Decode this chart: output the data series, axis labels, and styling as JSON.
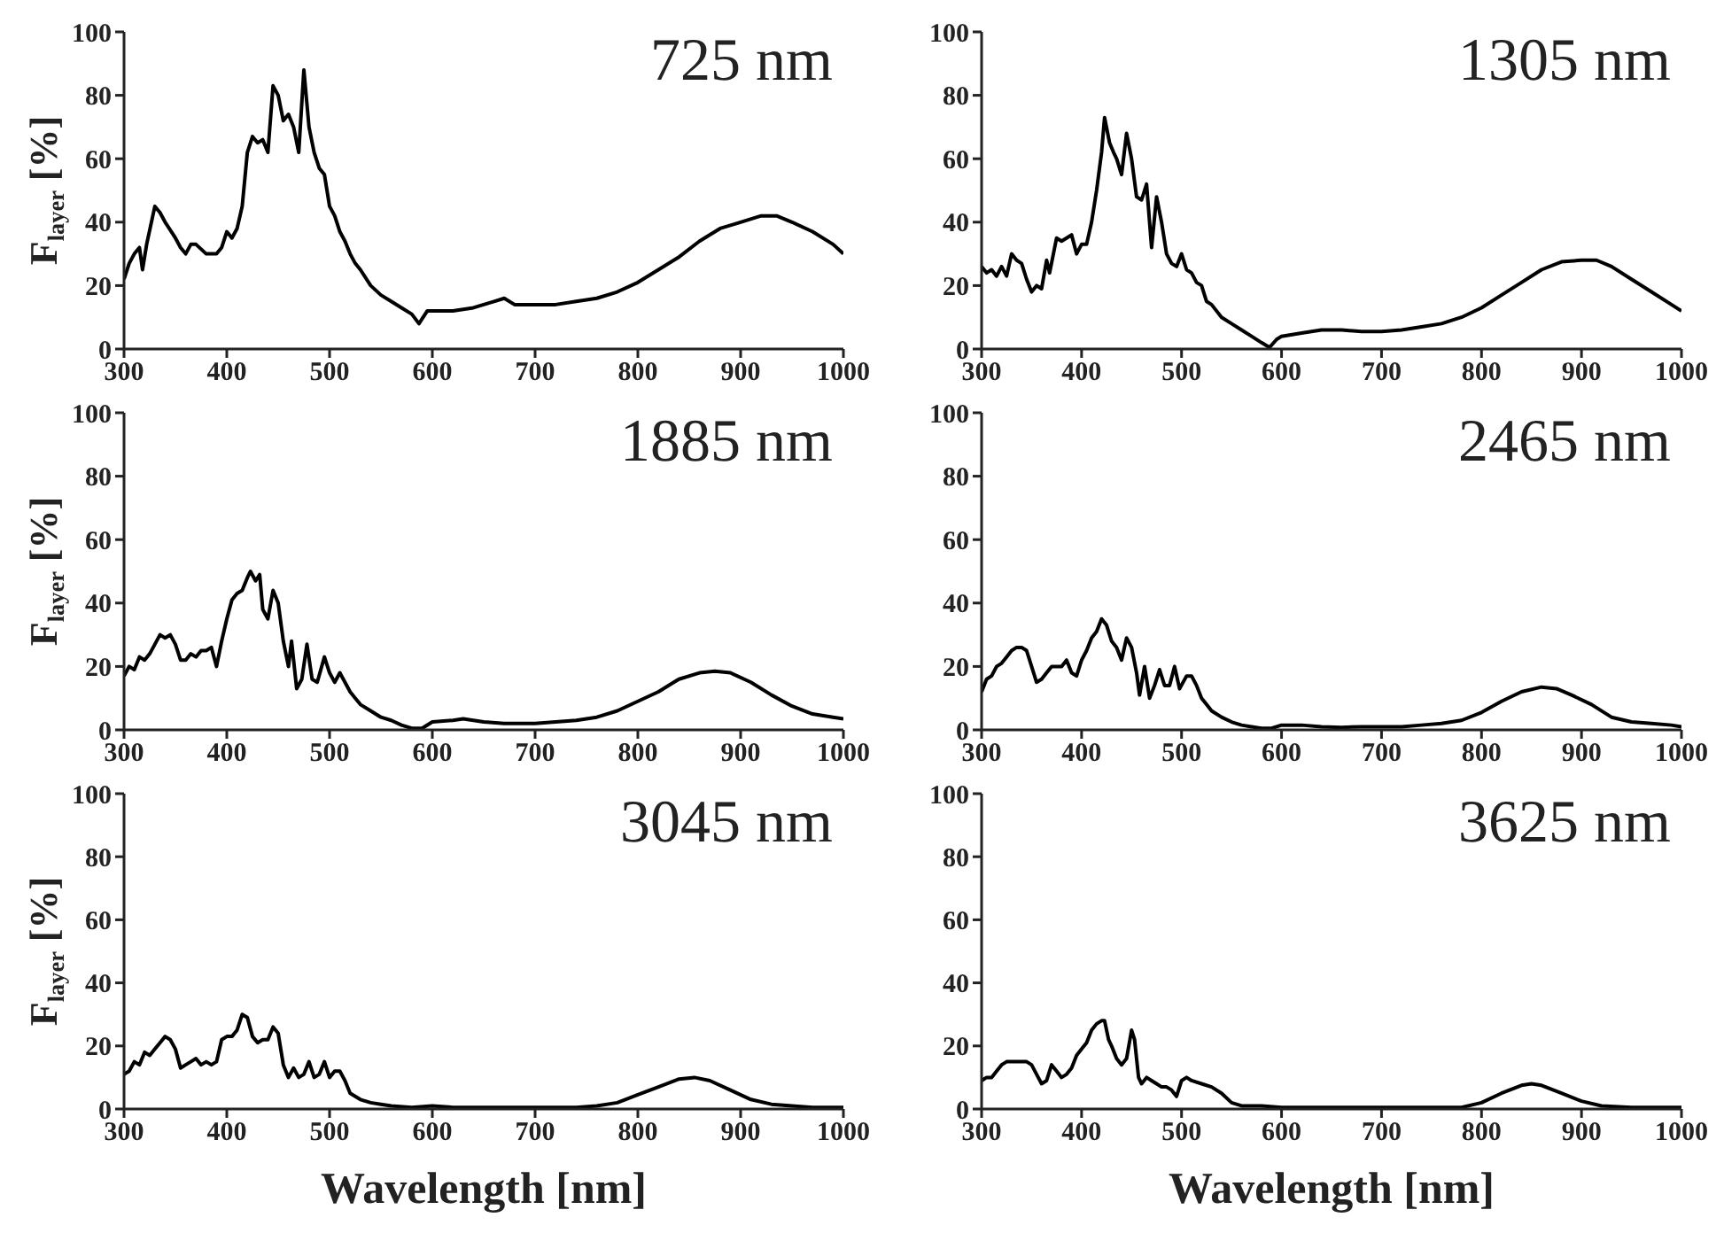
{
  "chart_data": [
    {
      "type": "line",
      "title": "725 nm",
      "ylabel": "F$_{layer}$ [%]",
      "xlim": [
        300,
        1000
      ],
      "xticks": [
        300,
        400,
        500,
        600,
        700,
        800,
        900,
        1000
      ],
      "ylim": [
        0,
        100
      ],
      "yticks": [
        0,
        20,
        40,
        60,
        80,
        100
      ],
      "tick_labels": true,
      "x": [
        300,
        305,
        310,
        315,
        318,
        322,
        330,
        335,
        340,
        350,
        355,
        360,
        365,
        370,
        380,
        390,
        395,
        400,
        405,
        410,
        415,
        420,
        425,
        430,
        435,
        440,
        445,
        450,
        455,
        460,
        465,
        470,
        475,
        480,
        485,
        490,
        495,
        500,
        505,
        510,
        515,
        520,
        525,
        530,
        540,
        550,
        560,
        570,
        580,
        587,
        595,
        600,
        620,
        640,
        660,
        670,
        680,
        700,
        720,
        740,
        760,
        780,
        800,
        820,
        840,
        860,
        880,
        900,
        920,
        935,
        950,
        970,
        990,
        1000
      ],
      "series": [
        {
          "color": "#000000",
          "values": [
            22,
            27,
            30,
            32,
            25,
            33,
            45,
            43,
            40,
            35,
            32,
            30,
            33,
            33,
            30,
            30,
            32,
            37,
            35,
            38,
            45,
            62,
            67,
            65,
            66,
            62,
            83,
            80,
            72,
            74,
            70,
            62,
            88,
            70,
            62,
            57,
            55,
            45,
            42,
            37,
            34,
            30,
            27,
            25,
            20,
            17,
            15,
            13,
            11,
            8,
            12,
            12,
            12,
            13,
            15,
            16,
            14,
            14,
            14,
            15,
            16,
            18,
            21,
            25,
            29,
            34,
            38,
            40,
            42,
            42,
            40,
            37,
            33,
            30
          ]
        }
      ]
    },
    {
      "type": "line",
      "title": "1305 nm",
      "xlim": [
        300,
        1000
      ],
      "xticks": [
        300,
        400,
        500,
        600,
        700,
        800,
        900,
        1000
      ],
      "ylim": [
        0,
        100
      ],
      "yticks": [
        0,
        20,
        40,
        60,
        80,
        100
      ],
      "x": [
        300,
        305,
        310,
        315,
        320,
        325,
        330,
        335,
        340,
        345,
        350,
        355,
        360,
        365,
        368,
        375,
        380,
        385,
        390,
        395,
        400,
        405,
        410,
        415,
        420,
        423,
        428,
        432,
        435,
        440,
        445,
        450,
        455,
        460,
        465,
        470,
        475,
        480,
        485,
        490,
        495,
        500,
        505,
        510,
        515,
        520,
        525,
        530,
        540,
        550,
        560,
        570,
        580,
        588,
        595,
        600,
        620,
        640,
        660,
        680,
        700,
        720,
        740,
        760,
        780,
        800,
        820,
        840,
        860,
        880,
        900,
        915,
        930,
        950,
        970,
        990,
        1000
      ],
      "series": [
        {
          "color": "#000000",
          "values": [
            26,
            24,
            25,
            23,
            26,
            23,
            30,
            28,
            27,
            22,
            18,
            20,
            19,
            28,
            24,
            35,
            34,
            35,
            36,
            30,
            33,
            33,
            40,
            50,
            62,
            73,
            65,
            62,
            60,
            55,
            68,
            60,
            48,
            47,
            52,
            32,
            48,
            40,
            30,
            27,
            26,
            30,
            25,
            24,
            21,
            20,
            15,
            14,
            10,
            8,
            6,
            4,
            2,
            0.5,
            3,
            4,
            5,
            6,
            6,
            5.5,
            5.5,
            6,
            7,
            8,
            10,
            13,
            17,
            21,
            25,
            27.5,
            28,
            28,
            26,
            22,
            18,
            14,
            12
          ]
        }
      ]
    },
    {
      "type": "line",
      "title": "1885 nm",
      "ylabel": "F$_{layer}$ [%]",
      "xlim": [
        300,
        1000
      ],
      "xticks": [
        300,
        400,
        500,
        600,
        700,
        800,
        900,
        1000
      ],
      "ylim": [
        0,
        100
      ],
      "yticks": [
        0,
        20,
        40,
        60,
        80,
        100
      ],
      "x": [
        300,
        305,
        310,
        315,
        320,
        325,
        330,
        335,
        340,
        345,
        350,
        355,
        360,
        365,
        370,
        375,
        380,
        385,
        390,
        395,
        400,
        405,
        410,
        415,
        420,
        423,
        428,
        432,
        435,
        440,
        445,
        450,
        455,
        460,
        463,
        468,
        473,
        478,
        483,
        488,
        495,
        500,
        505,
        510,
        515,
        520,
        525,
        530,
        540,
        550,
        560,
        570,
        580,
        590,
        600,
        620,
        630,
        650,
        670,
        700,
        720,
        740,
        760,
        780,
        800,
        820,
        840,
        860,
        875,
        890,
        910,
        930,
        950,
        970,
        990,
        1000
      ],
      "series": [
        {
          "color": "#000000",
          "values": [
            17,
            20,
            19,
            23,
            22,
            24,
            27,
            30,
            29,
            30,
            27,
            22,
            22,
            24,
            23,
            25,
            25,
            26,
            20,
            28,
            35,
            41,
            43,
            44,
            48,
            50,
            47,
            49,
            38,
            35,
            44,
            40,
            28,
            20,
            28,
            13,
            16,
            27,
            16,
            15,
            23,
            18,
            15,
            18,
            15,
            12,
            10,
            8,
            6,
            4,
            3,
            1.5,
            0.5,
            0.5,
            2.5,
            3,
            3.5,
            2.5,
            2,
            2,
            2.5,
            3,
            4,
            6,
            9,
            12,
            16,
            18,
            18.5,
            18,
            15,
            11,
            7.5,
            5,
            4,
            3.5
          ]
        }
      ]
    },
    {
      "type": "line",
      "title": "2465 nm",
      "xlim": [
        300,
        1000
      ],
      "xticks": [
        300,
        400,
        500,
        600,
        700,
        800,
        900,
        1000
      ],
      "ylim": [
        0,
        100
      ],
      "yticks": [
        0,
        20,
        40,
        60,
        80,
        100
      ],
      "x": [
        300,
        305,
        310,
        315,
        320,
        325,
        330,
        335,
        340,
        345,
        350,
        355,
        360,
        365,
        370,
        375,
        380,
        385,
        390,
        395,
        400,
        405,
        410,
        415,
        420,
        425,
        430,
        435,
        440,
        445,
        450,
        455,
        458,
        463,
        468,
        473,
        478,
        483,
        488,
        493,
        498,
        505,
        510,
        515,
        520,
        525,
        530,
        540,
        550,
        560,
        570,
        580,
        590,
        600,
        620,
        640,
        660,
        680,
        700,
        720,
        740,
        760,
        780,
        800,
        820,
        840,
        860,
        875,
        890,
        910,
        930,
        950,
        970,
        990,
        1000
      ],
      "series": [
        {
          "color": "#000000",
          "values": [
            12,
            16,
            17,
            20,
            21,
            23,
            25,
            26,
            26,
            25,
            20,
            15,
            16,
            18,
            20,
            20,
            20,
            22,
            18,
            17,
            22,
            25,
            29,
            31,
            35,
            33,
            28,
            26,
            22,
            29,
            26,
            18,
            11,
            20,
            10,
            14,
            19,
            14,
            14,
            20,
            13,
            17,
            17,
            14,
            10,
            8,
            6,
            4,
            2.5,
            1.5,
            1,
            0.5,
            0.5,
            1.5,
            1.5,
            1,
            0.8,
            1,
            1,
            1,
            1.5,
            2,
            3,
            5.5,
            9,
            12,
            13.5,
            13,
            11,
            8,
            4,
            2.5,
            2,
            1.5,
            1
          ]
        }
      ]
    },
    {
      "type": "line",
      "title": "3045 nm",
      "ylabel": "F$_{layer}$ [%]",
      "xlabel": "Wavelength [nm]",
      "xlim": [
        300,
        1000
      ],
      "xticks": [
        300,
        400,
        500,
        600,
        700,
        800,
        900,
        1000
      ],
      "ylim": [
        0,
        100
      ],
      "yticks": [
        0,
        20,
        40,
        60,
        80,
        100
      ],
      "x": [
        300,
        305,
        310,
        315,
        320,
        325,
        330,
        335,
        340,
        345,
        350,
        355,
        360,
        365,
        370,
        375,
        380,
        385,
        390,
        395,
        400,
        405,
        410,
        415,
        420,
        425,
        430,
        435,
        440,
        445,
        450,
        455,
        460,
        465,
        470,
        475,
        480,
        485,
        490,
        495,
        500,
        505,
        510,
        515,
        520,
        530,
        540,
        550,
        560,
        580,
        600,
        620,
        650,
        700,
        740,
        760,
        780,
        800,
        820,
        840,
        855,
        870,
        890,
        910,
        930,
        950,
        970,
        1000
      ],
      "series": [
        {
          "color": "#000000",
          "values": [
            11,
            12,
            15,
            14,
            18,
            17,
            19,
            21,
            23,
            22,
            19,
            13,
            14,
            15,
            16,
            14,
            15,
            14,
            15,
            22,
            23,
            23,
            25,
            30,
            29,
            23,
            21,
            22,
            22,
            26,
            24,
            14,
            10,
            13,
            10,
            11,
            15,
            10,
            11,
            15,
            10,
            12,
            12,
            9,
            5,
            3,
            2,
            1.5,
            1,
            0.5,
            1,
            0.5,
            0.5,
            0.5,
            0.5,
            1,
            2,
            4.5,
            7,
            9.5,
            10,
            9,
            6,
            3,
            1.5,
            1,
            0.5,
            0.5
          ]
        }
      ]
    },
    {
      "type": "line",
      "title": "3625 nm",
      "xlabel": "Wavelength [nm]",
      "xlim": [
        300,
        1000
      ],
      "xticks": [
        300,
        400,
        500,
        600,
        700,
        800,
        900,
        1000
      ],
      "ylim": [
        0,
        100
      ],
      "yticks": [
        0,
        20,
        40,
        60,
        80,
        100
      ],
      "x": [
        300,
        305,
        310,
        315,
        320,
        325,
        330,
        340,
        345,
        350,
        355,
        360,
        365,
        370,
        375,
        380,
        385,
        390,
        395,
        400,
        405,
        410,
        415,
        420,
        423,
        427,
        430,
        435,
        440,
        445,
        450,
        453,
        457,
        460,
        465,
        470,
        475,
        480,
        485,
        490,
        495,
        500,
        505,
        510,
        520,
        530,
        540,
        550,
        560,
        580,
        600,
        650,
        700,
        780,
        800,
        820,
        840,
        850,
        860,
        880,
        900,
        920,
        950,
        1000
      ],
      "series": [
        {
          "color": "#000000",
          "values": [
            9,
            10,
            10,
            12,
            14,
            15,
            15,
            15,
            15,
            14,
            11,
            8,
            9,
            14,
            12,
            10,
            11,
            13,
            17,
            19,
            21,
            25,
            27,
            28,
            28,
            22,
            20,
            16,
            14,
            16,
            25,
            22,
            10,
            8,
            10,
            9,
            8,
            7,
            7,
            6,
            4,
            9,
            10,
            9,
            8,
            7,
            5,
            2,
            1,
            1,
            0.5,
            0.5,
            0.5,
            0.5,
            2,
            5,
            7.5,
            8,
            7.5,
            5,
            2.5,
            1,
            0.5,
            0.5
          ]
        }
      ]
    }
  ]
}
